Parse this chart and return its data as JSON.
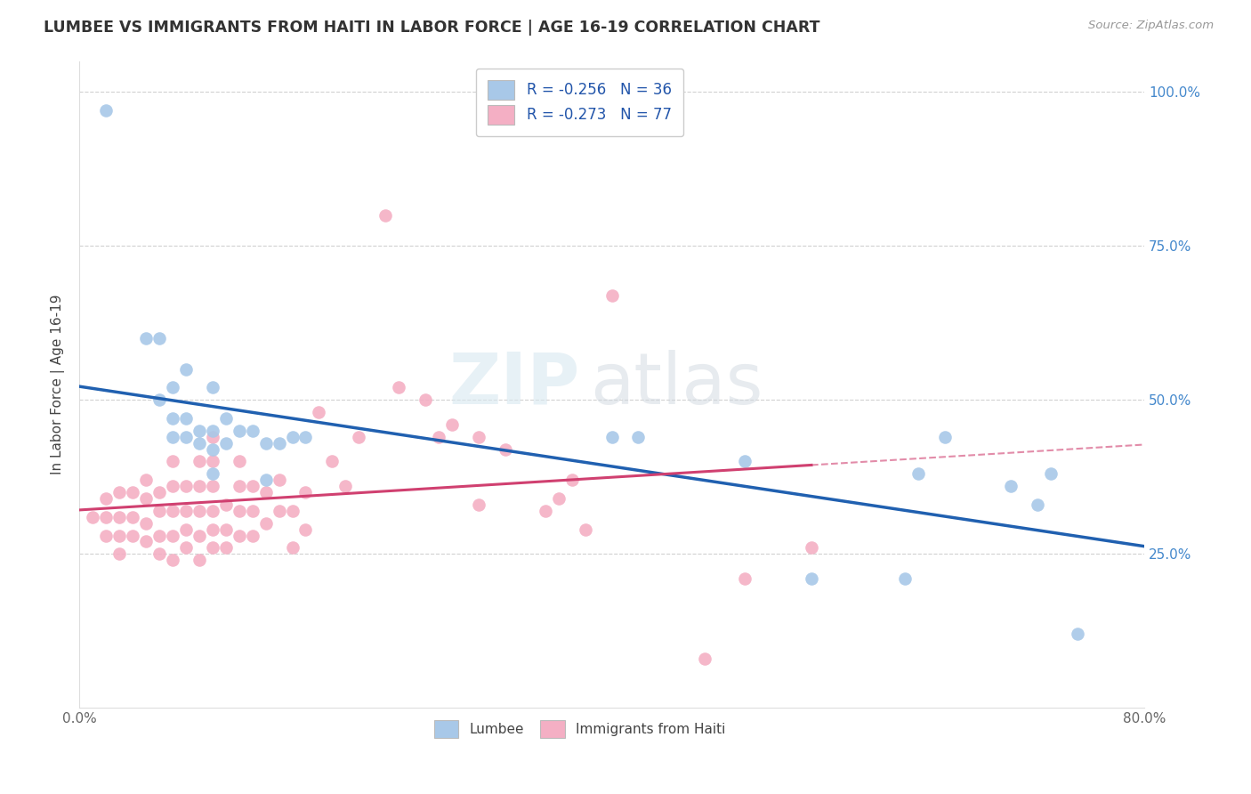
{
  "title": "LUMBEE VS IMMIGRANTS FROM HAITI IN LABOR FORCE | AGE 16-19 CORRELATION CHART",
  "source": "Source: ZipAtlas.com",
  "ylabel": "In Labor Force | Age 16-19",
  "right_yticks": [
    "100.0%",
    "75.0%",
    "50.0%",
    "25.0%"
  ],
  "right_ytick_vals": [
    1.0,
    0.75,
    0.5,
    0.25
  ],
  "xlim": [
    0.0,
    0.8
  ],
  "ylim": [
    0.0,
    1.05
  ],
  "lumbee_R": -0.256,
  "lumbee_N": 36,
  "haiti_R": -0.273,
  "haiti_N": 77,
  "lumbee_color": "#a8c8e8",
  "haiti_color": "#f4afc4",
  "lumbee_line_color": "#2060b0",
  "haiti_line_color": "#d04070",
  "watermark_zip": "ZIP",
  "watermark_atlas": "atlas",
  "lumbee_x": [
    0.02,
    0.05,
    0.06,
    0.06,
    0.07,
    0.07,
    0.07,
    0.08,
    0.08,
    0.08,
    0.09,
    0.09,
    0.1,
    0.1,
    0.1,
    0.1,
    0.11,
    0.11,
    0.12,
    0.13,
    0.14,
    0.14,
    0.15,
    0.16,
    0.17,
    0.4,
    0.42,
    0.5,
    0.55,
    0.62,
    0.63,
    0.65,
    0.7,
    0.72,
    0.73,
    0.75
  ],
  "lumbee_y": [
    0.97,
    0.6,
    0.5,
    0.6,
    0.44,
    0.47,
    0.52,
    0.44,
    0.47,
    0.55,
    0.43,
    0.45,
    0.38,
    0.42,
    0.45,
    0.52,
    0.43,
    0.47,
    0.45,
    0.45,
    0.37,
    0.43,
    0.43,
    0.44,
    0.44,
    0.44,
    0.44,
    0.4,
    0.21,
    0.21,
    0.38,
    0.44,
    0.36,
    0.33,
    0.38,
    0.12
  ],
  "haiti_x": [
    0.01,
    0.02,
    0.02,
    0.02,
    0.03,
    0.03,
    0.03,
    0.03,
    0.04,
    0.04,
    0.04,
    0.05,
    0.05,
    0.05,
    0.05,
    0.06,
    0.06,
    0.06,
    0.06,
    0.07,
    0.07,
    0.07,
    0.07,
    0.07,
    0.08,
    0.08,
    0.08,
    0.08,
    0.09,
    0.09,
    0.09,
    0.09,
    0.09,
    0.1,
    0.1,
    0.1,
    0.1,
    0.1,
    0.1,
    0.11,
    0.11,
    0.11,
    0.12,
    0.12,
    0.12,
    0.12,
    0.13,
    0.13,
    0.13,
    0.14,
    0.14,
    0.15,
    0.15,
    0.16,
    0.16,
    0.17,
    0.17,
    0.18,
    0.19,
    0.2,
    0.21,
    0.23,
    0.24,
    0.26,
    0.27,
    0.28,
    0.3,
    0.3,
    0.32,
    0.35,
    0.36,
    0.37,
    0.38,
    0.4,
    0.47,
    0.5,
    0.55
  ],
  "haiti_y": [
    0.31,
    0.28,
    0.31,
    0.34,
    0.25,
    0.28,
    0.31,
    0.35,
    0.28,
    0.31,
    0.35,
    0.27,
    0.3,
    0.34,
    0.37,
    0.25,
    0.28,
    0.32,
    0.35,
    0.24,
    0.28,
    0.32,
    0.36,
    0.4,
    0.26,
    0.29,
    0.32,
    0.36,
    0.24,
    0.28,
    0.32,
    0.36,
    0.4,
    0.26,
    0.29,
    0.32,
    0.36,
    0.4,
    0.44,
    0.26,
    0.29,
    0.33,
    0.28,
    0.32,
    0.36,
    0.4,
    0.28,
    0.32,
    0.36,
    0.3,
    0.35,
    0.32,
    0.37,
    0.26,
    0.32,
    0.29,
    0.35,
    0.48,
    0.4,
    0.36,
    0.44,
    0.8,
    0.52,
    0.5,
    0.44,
    0.46,
    0.44,
    0.33,
    0.42,
    0.32,
    0.34,
    0.37,
    0.29,
    0.67,
    0.08,
    0.21,
    0.26
  ],
  "background_color": "#ffffff",
  "grid_color": "#cccccc"
}
